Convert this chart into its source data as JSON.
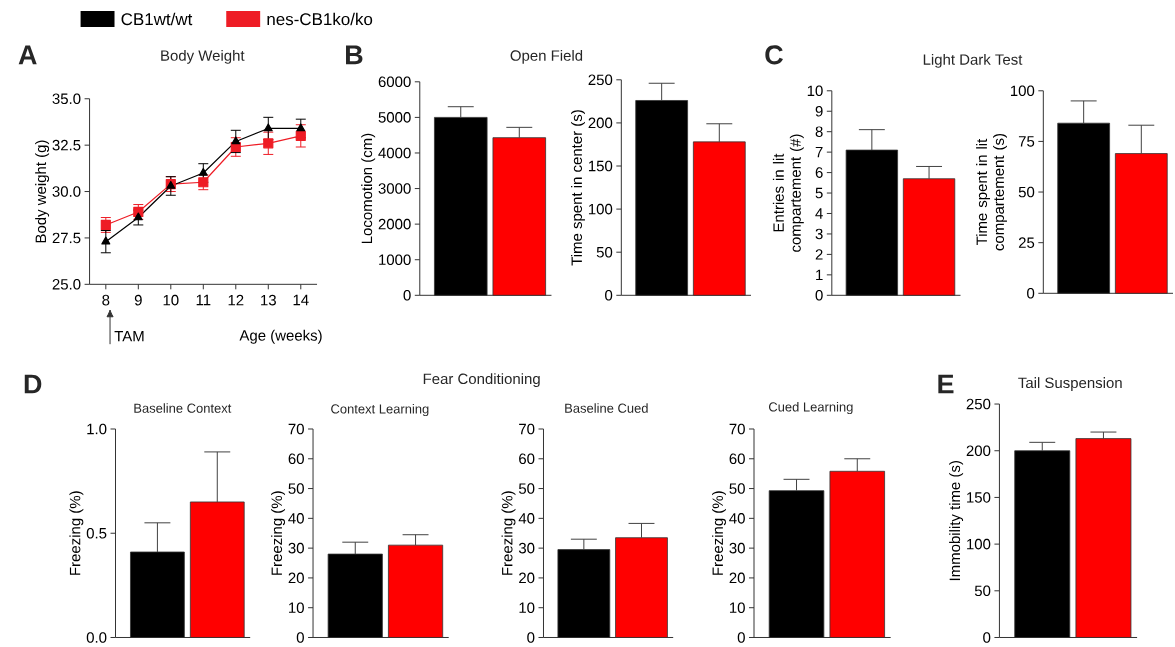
{
  "chart_data": [
    {
      "type": "line",
      "title": "Body Weight",
      "xlabel": "Age (weeks)",
      "ylabel": "Body weight (g)",
      "annotations": [
        "A",
        "TAM"
      ],
      "legend": "top",
      "x": [
        8,
        9,
        10,
        11,
        12,
        13,
        14
      ],
      "xlim": [
        7.5,
        14.5
      ],
      "xticks": [
        8,
        9,
        10,
        11,
        12,
        13,
        14
      ],
      "ylim": [
        25,
        35
      ],
      "yticks": [
        {
          "value": 25,
          "label": "25.0"
        },
        {
          "value": 27.5,
          "label": "27.5"
        },
        {
          "value": 30,
          "label": "30.0"
        },
        {
          "value": 32.5,
          "label": "32.5"
        },
        {
          "value": 35,
          "label": "35.0"
        }
      ],
      "series": [
        {
          "name": "CB1wt/wt",
          "color": "#000000",
          "marker": "triangle",
          "values": [
            27.3,
            28.6,
            30.3,
            31.0,
            32.7,
            33.4,
            33.4
          ],
          "errors": [
            0.6,
            0.4,
            0.5,
            0.5,
            0.6,
            0.6,
            0.5
          ]
        },
        {
          "name": "nes-CB1ko/ko",
          "color": "#ee1c25",
          "marker": "square",
          "values": [
            28.2,
            28.9,
            30.4,
            30.5,
            32.4,
            32.6,
            33.0
          ],
          "errors": [
            0.4,
            0.4,
            0.4,
            0.4,
            0.5,
            0.6,
            0.6
          ]
        }
      ]
    },
    {
      "type": "bar",
      "title": "Open Field",
      "ylabel": "Locomotion (cm)",
      "annotations": [
        "B"
      ],
      "categories": [
        null,
        null
      ],
      "values": [
        5000,
        4430
      ],
      "colors": [
        "#000000",
        "#ff0000"
      ],
      "errors": [
        [
          5000,
          5300
        ],
        [
          4430,
          4720
        ]
      ],
      "ylim": [
        0,
        6000
      ],
      "yticks": [
        0,
        1000,
        2000,
        3000,
        4000,
        5000,
        6000
      ]
    },
    {
      "type": "bar",
      "ylabel": "Time spent in center (s)",
      "categories": [
        null,
        null
      ],
      "values": [
        226,
        178
      ],
      "colors": [
        "#000000",
        "#ff0000"
      ],
      "errors": [
        [
          226,
          246
        ],
        [
          178,
          199
        ]
      ],
      "ylim": [
        0,
        250
      ],
      "yticks": [
        0,
        50,
        100,
        150,
        200,
        250
      ]
    },
    {
      "type": "bar",
      "title": "Light Dark Test",
      "ylabel": "Entries in lit compartement (#)",
      "annotations": [
        "C"
      ],
      "categories": [
        null,
        null
      ],
      "values": [
        7.1,
        5.7
      ],
      "colors": [
        "#000000",
        "#ff0000"
      ],
      "errors": [
        [
          7.1,
          8.1
        ],
        [
          5.7,
          6.3
        ]
      ],
      "ylim": [
        0,
        10
      ],
      "yticks": [
        0,
        1,
        2,
        3,
        4,
        5,
        6,
        7,
        8,
        9,
        10
      ]
    },
    {
      "type": "bar",
      "ylabel": "Time spent in lit compartement (s)",
      "categories": [
        null,
        null
      ],
      "values": [
        84,
        69
      ],
      "colors": [
        "#000000",
        "#ff0000"
      ],
      "errors": [
        [
          84,
          95
        ],
        [
          69,
          83
        ]
      ],
      "ylim": [
        0,
        100
      ],
      "yticks": [
        0,
        25,
        50,
        75,
        100
      ]
    },
    {
      "type": "bar",
      "title": "Baseline Context",
      "ylabel": "Freezing (%)",
      "annotations": [
        "D",
        "Fear Conditioning"
      ],
      "categories": [
        null,
        null
      ],
      "values": [
        0.41,
        0.65
      ],
      "colors": [
        "#000000",
        "#ff0000"
      ],
      "errors": [
        [
          0.41,
          0.55
        ],
        [
          0.65,
          0.89
        ]
      ],
      "ylim": [
        0,
        1
      ],
      "yticks": [
        {
          "value": 0,
          "label": "0.0"
        },
        {
          "value": 0.5,
          "label": "0.5"
        },
        {
          "value": 1,
          "label": "1.0"
        }
      ]
    },
    {
      "type": "bar",
      "title": "Context Learning",
      "ylabel": "Freezing (%)",
      "categories": [
        null,
        null
      ],
      "values": [
        28,
        31
      ],
      "colors": [
        "#000000",
        "#ff0000"
      ],
      "errors": [
        [
          28,
          32
        ],
        [
          31,
          34.5
        ]
      ],
      "ylim": [
        0,
        70
      ],
      "yticks": [
        0,
        10,
        20,
        30,
        40,
        50,
        60,
        70
      ]
    },
    {
      "type": "bar",
      "title": "Baseline Cued",
      "ylabel": "Freezing (%)",
      "categories": [
        null,
        null
      ],
      "values": [
        29.5,
        33.5
      ],
      "colors": [
        "#000000",
        "#ff0000"
      ],
      "errors": [
        [
          29.5,
          33
        ],
        [
          33.5,
          38.3
        ]
      ],
      "ylim": [
        0,
        70
      ],
      "yticks": [
        0,
        10,
        20,
        30,
        40,
        50,
        60,
        70
      ]
    },
    {
      "type": "bar",
      "title": "Cued Learning",
      "ylabel": "Freezing (%)",
      "categories": [
        null,
        null
      ],
      "values": [
        49.3,
        55.8
      ],
      "colors": [
        "#000000",
        "#ff0000"
      ],
      "errors": [
        [
          49.3,
          53.1
        ],
        [
          55.8,
          60
        ]
      ],
      "ylim": [
        0,
        70
      ],
      "yticks": [
        0,
        10,
        20,
        30,
        40,
        50,
        60,
        70
      ]
    },
    {
      "type": "bar",
      "title": "Tail Suspension",
      "ylabel": "Immobility time (s)",
      "annotations": [
        "E"
      ],
      "categories": [
        null,
        null
      ],
      "values": [
        200,
        213
      ],
      "colors": [
        "#000000",
        "#ff0000"
      ],
      "errors": [
        [
          200,
          209
        ],
        [
          213,
          220
        ]
      ],
      "ylim": [
        0,
        250
      ],
      "yticks": [
        0,
        50,
        100,
        150,
        200,
        250
      ]
    }
  ]
}
